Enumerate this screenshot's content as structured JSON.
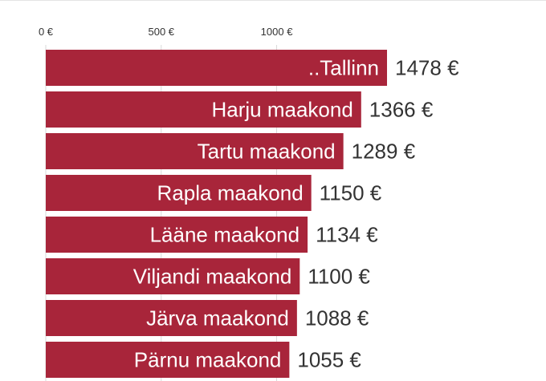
{
  "chart_data": {
    "type": "bar",
    "orientation": "horizontal",
    "categories": [
      "..Tallinn",
      "Harju maakond",
      "Tartu maakond",
      "Rapla maakond",
      "Lääne maakond",
      "Viljandi maakond",
      "Järva maakond",
      "Pärnu maakond"
    ],
    "values": [
      1478,
      1366,
      1289,
      1150,
      1134,
      1100,
      1088,
      1055
    ],
    "value_labels": [
      "1478 €",
      "1366 €",
      "1289 €",
      "1150 €",
      "1134 €",
      "1100 €",
      "1088 €",
      "1055 €"
    ],
    "x_ticks": [
      0,
      500,
      1000
    ],
    "x_tick_labels": [
      "0 €",
      "500 €",
      "1000 €"
    ],
    "xlim": [
      0,
      1478
    ],
    "grid": true,
    "legend": "none",
    "colors": {
      "bar": "#a8253a",
      "grid": "#d9d9d9",
      "text": "#333333",
      "bar_text": "#ffffff"
    }
  }
}
